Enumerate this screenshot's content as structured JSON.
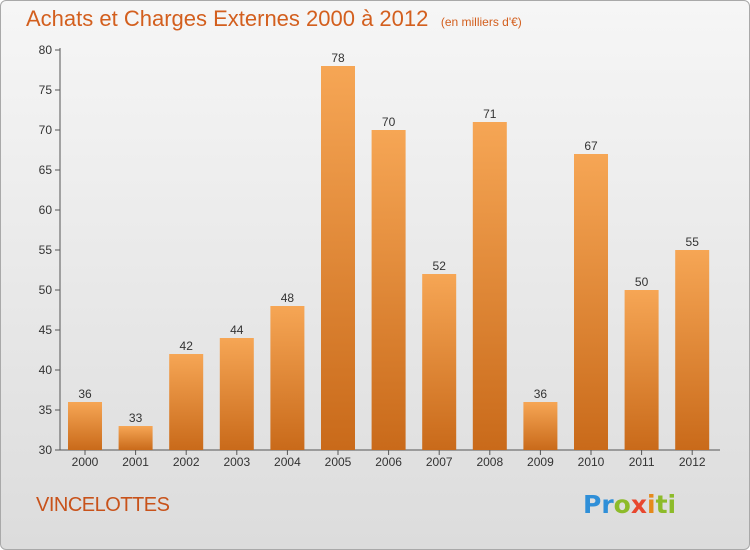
{
  "title": "Achats et Charges Externes 2000 à 2012",
  "unit": "(en milliers d'€)",
  "commune": "VINCELOTTES",
  "logo": {
    "letters": [
      "P",
      "r",
      "o",
      "x",
      "i",
      "t",
      "i"
    ],
    "colors": [
      "#2f8fd8",
      "#2f8fd8",
      "#8dbb2a",
      "#e8472e",
      "#e58a1c",
      "#8dbb2a",
      "#8dbb2a"
    ]
  },
  "colors": {
    "bar_top": "#f6a655",
    "bar_bottom": "#c96a1a",
    "title": "#d35f1e"
  },
  "chart_data": {
    "type": "bar",
    "categories": [
      "2000",
      "2001",
      "2002",
      "2003",
      "2004",
      "2005",
      "2006",
      "2007",
      "2008",
      "2009",
      "2010",
      "2011",
      "2012"
    ],
    "values": [
      36,
      33,
      42,
      44,
      48,
      78,
      70,
      52,
      71,
      36,
      67,
      50,
      55
    ],
    "ylim": [
      30,
      80
    ],
    "yticks": [
      30,
      35,
      40,
      45,
      50,
      55,
      60,
      65,
      70,
      75,
      80
    ],
    "grid": false
  }
}
